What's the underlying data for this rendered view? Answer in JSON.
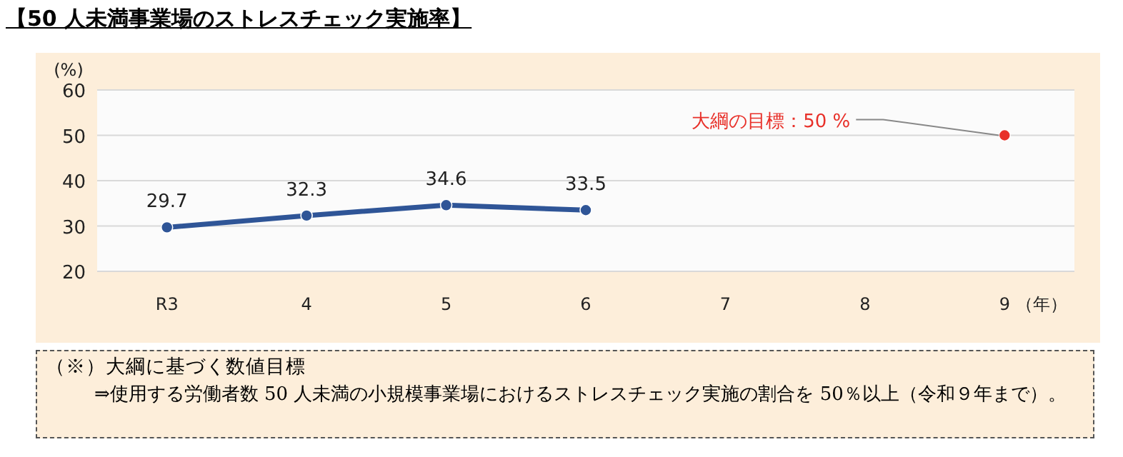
{
  "chart_data": {
    "type": "line",
    "title": "【50 人未満事業場のストレスチェック実施率】",
    "xlabel": "（年）",
    "ylabel": "(%)",
    "categories": [
      "R3",
      "4",
      "5",
      "6",
      "7",
      "8",
      "9"
    ],
    "series": [
      {
        "color": "#2f5597",
        "values": [
          29.7,
          32.3,
          34.6,
          33.5,
          null,
          null,
          null
        ],
        "value_labels": [
          "29.7",
          "32.3",
          "34.6",
          "33.5",
          null,
          null,
          null
        ]
      },
      {
        "type": "scatter",
        "color": "#e8312a",
        "values": [
          null,
          null,
          null,
          null,
          null,
          null,
          50
        ]
      }
    ],
    "ylim": [
      20,
      60
    ],
    "yticks": [
      20,
      30,
      40,
      50,
      60
    ],
    "grid": "y",
    "marker": "circle",
    "annotations": [
      {
        "text": "大綱の目標：50 %",
        "x": "9",
        "y": 50
      },
      "（※）大綱に基づく数値目標",
      "⇒使用する労働者数 50 人未満の小規模事業場におけるストレスチェック実施の割合を 50％以上（令和９年まで）。"
    ]
  }
}
